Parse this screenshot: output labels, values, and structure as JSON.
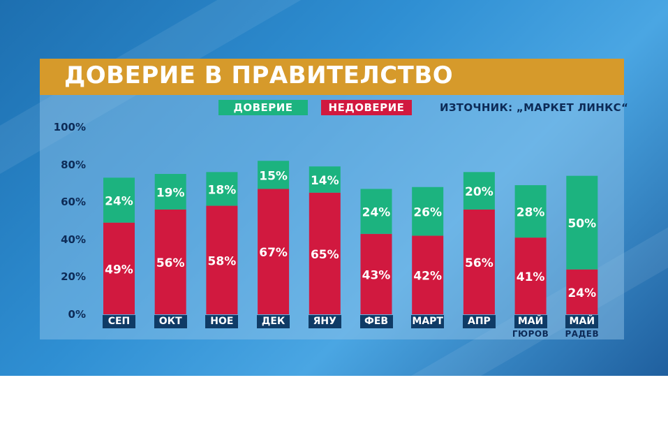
{
  "title": "ДОВЕРИЕ В ПРАВИТЕЛСТВО",
  "source": "ИЗТОЧНИК: „МАРКЕТ ЛИНКС“",
  "colors": {
    "trust": "#1cb37f",
    "distrust": "#d1193f",
    "title_bg": "#d69a2b",
    "label_box": "#0f3b66"
  },
  "chart_data": {
    "type": "bar",
    "stacked": true,
    "title": "ДОВЕРИЕ В ПРАВИТЕЛСТВО",
    "categories": [
      "СЕП",
      "ОКТ",
      "НОЕ",
      "ДЕК",
      "ЯНУ",
      "ФЕВ",
      "МАРТ",
      "АПР",
      "МАЙ",
      "МАЙ"
    ],
    "category_sublabels": [
      "",
      "",
      "",
      "",
      "",
      "",
      "",
      "",
      "ГЮРОВ",
      "РАДЕВ"
    ],
    "series": [
      {
        "name": "НЕДОВЕРИЕ",
        "values": [
          49,
          56,
          58,
          67,
          65,
          43,
          42,
          56,
          41,
          24
        ],
        "labels": [
          "49%",
          "56%",
          "58%",
          "67%",
          "65%",
          "43%",
          "42%",
          "56%",
          "41%",
          "24%"
        ]
      },
      {
        "name": "ДОВЕРИЕ",
        "values": [
          24,
          19,
          18,
          15,
          14,
          24,
          26,
          20,
          28,
          50
        ],
        "labels": [
          "24%",
          "19%",
          "18%",
          "15%",
          "14%",
          "24%",
          "26%",
          "20%",
          "28%",
          "50%"
        ]
      }
    ],
    "yticks": [
      "0%",
      "20%",
      "40%",
      "60%",
      "80%",
      "100%"
    ],
    "ylim": [
      0,
      100
    ],
    "legend_position": "top",
    "grid": false
  }
}
